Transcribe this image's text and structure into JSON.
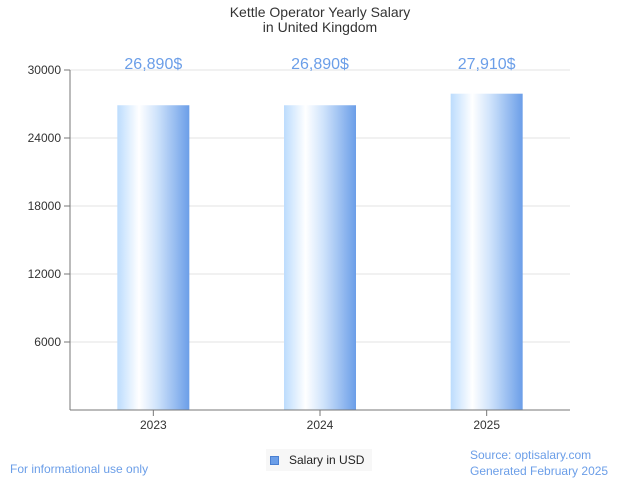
{
  "chart_data": {
    "type": "bar",
    "title_lines": [
      "Kettle Operator Yearly Salary",
      "in United Kingdom"
    ],
    "categories": [
      "2023",
      "2024",
      "2025"
    ],
    "series": [
      {
        "name": "Salary in USD",
        "values": [
          26890,
          26890,
          27910
        ]
      }
    ],
    "data_labels": [
      "26,890$",
      "26,890$",
      "27,910$"
    ],
    "y_ticks": [
      6000,
      12000,
      18000,
      24000,
      30000
    ],
    "y_tick_labels": [
      "6000",
      "12000",
      "18000",
      "24000",
      "30000"
    ],
    "ylim": [
      0,
      30000
    ],
    "grid": true,
    "legend": {
      "label": "Salary in USD",
      "position": "bottom-center"
    },
    "colors": {
      "bar_light": "#ffffff",
      "bar_mid": "#bcdcfd",
      "bar_dark": "#6b9ee8",
      "label": "#6b9ee8"
    }
  },
  "footer": {
    "left_note": "For informational use only",
    "source": "Source: optisalary.com",
    "generated": "Generated February 2025"
  }
}
